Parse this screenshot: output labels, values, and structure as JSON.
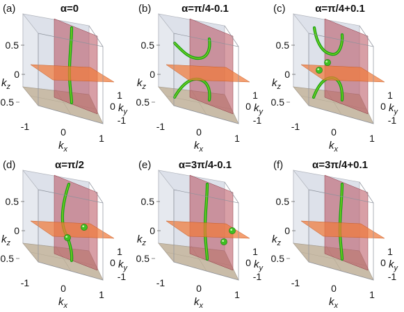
{
  "figure": {
    "panels": [
      {
        "label": "(a)",
        "title": "α=0",
        "kz_label": "k",
        "kz_sub": "z",
        "ky_label": "k",
        "ky_sub": "y",
        "kx_label": "k",
        "kx_sub": "x",
        "kz_ticks": [
          "0.5",
          "0",
          "-0.5"
        ],
        "kx_ticks": [
          "-1",
          "0",
          "1"
        ],
        "ky_ticks": [
          "1",
          "0",
          "-1"
        ],
        "curve": "single-arc",
        "points": []
      },
      {
        "label": "(b)",
        "title": "α=π/4-0.1",
        "kz_label": "k",
        "kz_sub": "z",
        "ky_label": "k",
        "ky_sub": "y",
        "kx_label": "k",
        "kx_sub": "x",
        "kz_ticks": [
          "0.5",
          "0",
          "-0.5"
        ],
        "kx_ticks": [
          "-1",
          "0",
          "1"
        ],
        "ky_ticks": [
          "1",
          "0",
          "-1"
        ],
        "curve": "hourglass",
        "points": []
      },
      {
        "label": "(c)",
        "title": "α=π/4+0.1",
        "kz_label": "k",
        "kz_sub": "z",
        "ky_label": "k",
        "ky_sub": "y",
        "kx_label": "k",
        "kx_sub": "x",
        "kz_ticks": [
          "0.5",
          "0",
          "-0.5"
        ],
        "kx_ticks": [
          "-1",
          "0",
          "1"
        ],
        "ky_ticks": [
          "1",
          "0",
          "-1"
        ],
        "curve": "hourglass-dots",
        "points": [
          "front",
          "back"
        ]
      },
      {
        "label": "(d)",
        "title": "α=π/2",
        "kz_label": "k",
        "kz_sub": "z",
        "ky_label": "k",
        "ky_sub": "y",
        "kx_label": "k",
        "kx_sub": "x",
        "kz_ticks": [
          "0.5",
          "0",
          "-0.5"
        ],
        "kx_ticks": [
          "-1",
          "0",
          "1"
        ],
        "ky_ticks": [
          "1",
          "0",
          "-1"
        ],
        "curve": "bent-arc",
        "points": [
          "left",
          "right"
        ]
      },
      {
        "label": "(e)",
        "title": "α=3π/4-0.1",
        "kz_label": "k",
        "kz_sub": "z",
        "ky_label": "k",
        "ky_sub": "y",
        "kx_label": "k",
        "kx_sub": "x",
        "kz_ticks": [
          "0.5",
          "0",
          "-0.5"
        ],
        "kx_ticks": [
          "-1",
          "0",
          "1"
        ],
        "ky_ticks": [
          "1",
          "0",
          "-1"
        ],
        "curve": "single-arc",
        "points": [
          "right-front",
          "right-back"
        ]
      },
      {
        "label": "(f)",
        "title": "α=3π/4+0.1",
        "kz_label": "k",
        "kz_sub": "z",
        "ky_label": "k",
        "ky_sub": "y",
        "kx_label": "k",
        "kx_sub": "x",
        "kz_ticks": [
          "0.5",
          "0",
          "-0.5"
        ],
        "kx_ticks": [
          "-1",
          "0",
          "1"
        ],
        "ky_ticks": [
          "1",
          "0",
          "-1"
        ],
        "curve": "single-arc",
        "points": []
      }
    ],
    "colors": {
      "curve": "#16a314",
      "curve_core": "#7ed321",
      "point": "#3fbf23",
      "vertical_plane": "#b8505c",
      "horizontal_plane": "#f07a3a",
      "floor": "#c9bca8",
      "box_wall": "#dde1ea"
    }
  }
}
